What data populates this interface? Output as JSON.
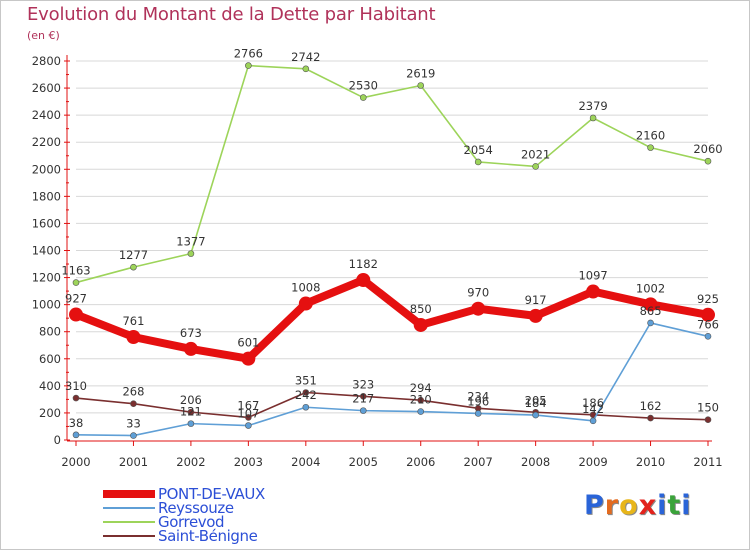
{
  "title": "Evolution du Montant de la Dette par Habitant",
  "unit_label": "(en €)",
  "colors": {
    "title": "#b0325a",
    "axis": "#e01010",
    "grid": "#d8d8d8",
    "legend_text": "#2c4fd6"
  },
  "logo": {
    "letters": [
      "P",
      "r",
      "o",
      "x",
      "i",
      "t",
      "i"
    ],
    "colors": [
      "#2a64d8",
      "#e36b1f",
      "#e8b61a",
      "#e3221c",
      "#2a64d8",
      "#3aa33a",
      "#2a64d8"
    ]
  },
  "chart_data": {
    "type": "line",
    "title": "Evolution du Montant de la Dette par Habitant",
    "ylabel": "(en €)",
    "xlabel": "",
    "x": [
      "2000",
      "2001",
      "2002",
      "2003",
      "2004",
      "2005",
      "2006",
      "2007",
      "2008",
      "2009",
      "2010",
      "2011"
    ],
    "ylim": [
      0,
      2800
    ],
    "yticks": [
      "0",
      "200",
      "400",
      "600",
      "800",
      "1000",
      "1200",
      "1400",
      "1600",
      "1800",
      "2000",
      "2200",
      "2400",
      "2600",
      "2800"
    ],
    "grid": true,
    "legend_position": "bottom-left",
    "series": [
      {
        "name": "PONT-DE-VAUX",
        "color": "#e51010",
        "emphasis": true,
        "values": [
          927,
          761,
          673,
          601,
          1008,
          1182,
          850,
          970,
          917,
          1097,
          1002,
          925
        ],
        "labels": [
          "927",
          "761",
          "673",
          "601",
          "1008",
          "1182",
          "850",
          "970",
          "917",
          "1097",
          "1002",
          "925"
        ]
      },
      {
        "name": "Reyssouze",
        "color": "#5f9fd6",
        "emphasis": false,
        "values": [
          38,
          33,
          121,
          107,
          242,
          217,
          210,
          196,
          184,
          142,
          865,
          766
        ],
        "labels": [
          "38",
          "33",
          "121",
          "107",
          "242",
          "217",
          "210",
          "196",
          "184",
          "142",
          "865",
          "766"
        ]
      },
      {
        "name": "Gorrevod",
        "color": "#9dd45a",
        "emphasis": false,
        "values": [
          1163,
          1277,
          1377,
          2766,
          2742,
          2530,
          2619,
          2054,
          2021,
          2379,
          2160,
          2060
        ],
        "labels": [
          "1163",
          "1277",
          "1377",
          "2766",
          "2742",
          "2530",
          "2619",
          "2054",
          "2021",
          "2379",
          "2160",
          "2060"
        ]
      },
      {
        "name": "Saint-Bénigne",
        "color": "#7a2f2f",
        "emphasis": false,
        "values": [
          310,
          268,
          206,
          167,
          351,
          323,
          294,
          234,
          205,
          186,
          162,
          150
        ],
        "labels": [
          "310",
          "268",
          "206",
          "167",
          "351",
          "323",
          "294",
          "234",
          "205",
          "186",
          "162",
          "150"
        ]
      }
    ]
  }
}
